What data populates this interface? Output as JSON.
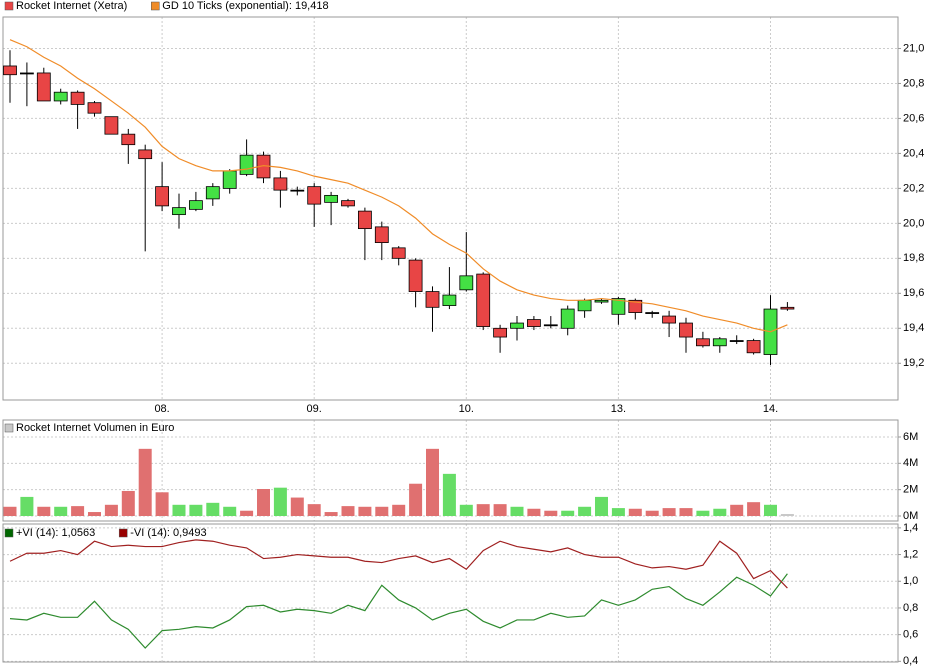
{
  "chart_data": [
    {
      "type": "candlestick",
      "categories": [
        null,
        null,
        null,
        null,
        null,
        null,
        null,
        null,
        null,
        "08.",
        null,
        null,
        null,
        null,
        null,
        null,
        null,
        null,
        "09.",
        null,
        null,
        null,
        null,
        null,
        null,
        null,
        null,
        "10.",
        null,
        null,
        null,
        null,
        null,
        null,
        null,
        null,
        "13.",
        null,
        null,
        null,
        null,
        null,
        null,
        null,
        null,
        "14.",
        null
      ],
      "series": [
        {
          "name": "Rocket Internet (Xetra)",
          "type": "candlestick",
          "color_up": "#44e044",
          "color_down": "#e84545",
          "open": [
            20.9,
            20.86,
            20.86,
            20.7,
            20.75,
            20.69,
            20.61,
            20.51,
            20.42,
            20.21,
            20.05,
            20.08,
            20.14,
            20.2,
            20.28,
            20.39,
            20.26,
            20.19,
            20.21,
            20.12,
            20.13,
            20.07,
            19.98,
            19.86,
            19.79,
            19.61,
            19.53,
            19.62,
            19.71,
            19.4,
            19.4,
            19.45,
            19.42,
            19.4,
            19.5,
            19.55,
            19.48,
            19.56,
            19.49,
            19.47,
            19.43,
            19.34,
            19.3,
            19.33,
            19.33,
            19.25,
            19.52
          ],
          "high": [
            20.99,
            20.92,
            20.89,
            20.77,
            20.76,
            20.7,
            20.61,
            20.54,
            20.45,
            20.35,
            20.17,
            20.18,
            20.23,
            20.31,
            20.48,
            20.41,
            20.3,
            20.21,
            20.23,
            20.18,
            20.14,
            20.09,
            20.01,
            19.87,
            19.8,
            19.64,
            19.75,
            19.95,
            19.72,
            19.42,
            19.47,
            19.47,
            19.47,
            19.53,
            19.57,
            19.57,
            19.58,
            19.57,
            19.5,
            19.5,
            19.46,
            19.38,
            19.35,
            19.36,
            19.34,
            19.59,
            19.55
          ],
          "low": [
            20.69,
            20.67,
            20.7,
            20.68,
            20.54,
            20.61,
            20.51,
            20.34,
            19.84,
            20.07,
            19.97,
            20.07,
            20.1,
            20.17,
            20.27,
            20.23,
            20.09,
            20.16,
            19.98,
            19.99,
            20.09,
            19.79,
            19.79,
            19.76,
            19.52,
            19.38,
            19.51,
            19.61,
            19.39,
            19.26,
            19.33,
            19.39,
            19.4,
            19.36,
            19.46,
            19.54,
            19.42,
            19.45,
            19.46,
            19.35,
            19.26,
            19.29,
            19.26,
            19.31,
            19.25,
            19.19,
            19.5
          ],
          "close": [
            20.85,
            20.86,
            20.7,
            20.75,
            20.68,
            20.63,
            20.51,
            20.45,
            20.37,
            20.1,
            20.09,
            20.13,
            20.21,
            20.3,
            20.39,
            20.26,
            20.19,
            20.19,
            20.11,
            20.16,
            20.1,
            19.97,
            19.89,
            19.8,
            19.61,
            19.52,
            19.59,
            19.7,
            19.41,
            19.35,
            19.43,
            19.41,
            19.42,
            19.51,
            19.56,
            19.56,
            19.57,
            19.49,
            19.49,
            19.43,
            19.35,
            19.3,
            19.34,
            19.33,
            19.26,
            19.51,
            19.51
          ]
        },
        {
          "name": "GD 10 Ticks (exponential): 19,418",
          "type": "line",
          "color": "#f08c28",
          "values": [
            21.05,
            21.01,
            20.95,
            20.9,
            20.83,
            20.77,
            20.7,
            20.63,
            20.55,
            20.44,
            20.37,
            20.33,
            20.3,
            20.3,
            20.31,
            20.33,
            20.32,
            20.3,
            20.27,
            20.25,
            20.23,
            20.19,
            20.15,
            20.1,
            20.03,
            19.94,
            19.88,
            19.83,
            19.74,
            19.67,
            19.62,
            19.59,
            19.57,
            19.56,
            19.56,
            19.57,
            19.56,
            19.55,
            19.54,
            19.52,
            19.5,
            19.47,
            19.45,
            19.43,
            19.4,
            19.38,
            19.42
          ]
        }
      ],
      "ylim": [
        18.99,
        21.18
      ],
      "yticks": [
        {
          "value": 19.2,
          "label": "19,2"
        },
        {
          "value": 19.4,
          "label": "19,4"
        },
        {
          "value": 19.6,
          "label": "19,6"
        },
        {
          "value": 19.8,
          "label": "19,8"
        },
        {
          "value": 20.0,
          "label": "20,0"
        },
        {
          "value": 20.2,
          "label": "20,2"
        },
        {
          "value": 20.4,
          "label": "20,4"
        },
        {
          "value": 20.6,
          "label": "20,6"
        },
        {
          "value": 20.8,
          "label": "20,8"
        },
        {
          "value": 21.0,
          "label": "21,0"
        }
      ],
      "grid": true
    },
    {
      "type": "bar",
      "series": [
        {
          "name": "Rocket Internet Volumen in Euro",
          "color": "#c8c8c8",
          "values": [
            0.7,
            1.45,
            0.7,
            0.7,
            0.75,
            0.3,
            0.85,
            1.9,
            5.1,
            1.8,
            0.85,
            0.85,
            1.0,
            0.7,
            0.4,
            2.05,
            2.15,
            1.4,
            0.9,
            0.3,
            0.75,
            0.7,
            0.7,
            0.85,
            2.45,
            5.1,
            3.2,
            0.85,
            0.9,
            0.9,
            0.7,
            0.55,
            0.4,
            0.4,
            0.7,
            1.45,
            0.6,
            0.55,
            0.4,
            0.6,
            0.6,
            0.4,
            0.55,
            0.85,
            1.05,
            0.85,
            0.15
          ],
          "colors": [
            "#e07070",
            "#66dd66",
            "#e07070",
            "#66dd66",
            "#e07070",
            "#e07070",
            "#e07070",
            "#e07070",
            "#e07070",
            "#e07070",
            "#66dd66",
            "#66dd66",
            "#66dd66",
            "#66dd66",
            "#e07070",
            "#e07070",
            "#66dd66",
            "#e07070",
            "#e07070",
            "#e07070",
            "#e07070",
            "#e07070",
            "#e07070",
            "#e07070",
            "#e07070",
            "#e07070",
            "#66dd66",
            "#66dd66",
            "#e07070",
            "#e07070",
            "#66dd66",
            "#e07070",
            "#e07070",
            "#66dd66",
            "#66dd66",
            "#66dd66",
            "#66dd66",
            "#e07070",
            "#e07070",
            "#e07070",
            "#e07070",
            "#66dd66",
            "#66dd66",
            "#e07070",
            "#e07070",
            "#66dd66",
            "#c8c8c8"
          ]
        }
      ],
      "ylim": [
        -0.38,
        7.29
      ],
      "yticks": [
        {
          "value": 0,
          "label": "0M"
        },
        {
          "value": 2,
          "label": "2M"
        },
        {
          "value": 4,
          "label": "4M"
        },
        {
          "value": 6,
          "label": "6M"
        }
      ],
      "grid": true
    },
    {
      "type": "line",
      "series": [
        {
          "name": "+VI (14): 1,0563",
          "color": "#2e8b2e",
          "legend_color": "#006600",
          "values": [
            0.72,
            0.71,
            0.76,
            0.73,
            0.73,
            0.85,
            0.71,
            0.64,
            0.5,
            0.63,
            0.64,
            0.66,
            0.65,
            0.71,
            0.81,
            0.82,
            0.77,
            0.79,
            0.78,
            0.76,
            0.82,
            0.78,
            0.97,
            0.86,
            0.8,
            0.71,
            0.76,
            0.79,
            0.7,
            0.65,
            0.71,
            0.71,
            0.76,
            0.73,
            0.74,
            0.86,
            0.82,
            0.86,
            0.94,
            0.96,
            0.87,
            0.82,
            0.92,
            1.03,
            0.97,
            0.89,
            1.0563
          ]
        },
        {
          "name": "-VI (14): 0,9493",
          "color": "#a02020",
          "legend_color": "#990000",
          "values": [
            1.15,
            1.21,
            1.21,
            1.23,
            1.2,
            1.3,
            1.26,
            1.27,
            1.26,
            1.26,
            1.29,
            1.31,
            1.3,
            1.27,
            1.25,
            1.17,
            1.18,
            1.2,
            1.19,
            1.18,
            1.18,
            1.15,
            1.14,
            1.17,
            1.19,
            1.14,
            1.17,
            1.09,
            1.23,
            1.3,
            1.26,
            1.24,
            1.22,
            1.25,
            1.2,
            1.18,
            1.18,
            1.13,
            1.1,
            1.11,
            1.09,
            1.12,
            1.3,
            1.21,
            1.02,
            1.08,
            0.9493
          ]
        }
      ],
      "ylim": [
        0.395,
        1.429
      ],
      "yticks": [
        {
          "value": 0.4,
          "label": "0,4"
        },
        {
          "value": 0.6,
          "label": "0,6"
        },
        {
          "value": 0.8,
          "label": "0,8"
        },
        {
          "value": 1.0,
          "label": "1,0"
        },
        {
          "value": 1.2,
          "label": "1,2"
        },
        {
          "value": 1.4,
          "label": "1,4"
        }
      ],
      "grid": true
    }
  ]
}
